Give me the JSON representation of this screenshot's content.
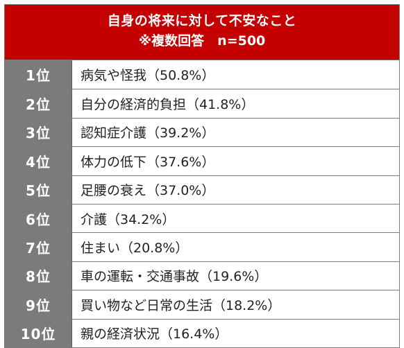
{
  "header": {
    "title": "自身の将来に対して不安なこと",
    "subtitle": "※複数回答　n=500"
  },
  "rows": [
    {
      "rank": "1位",
      "text": "病気や怪我（50.8%）"
    },
    {
      "rank": "2位",
      "text": "自分の経済的負担（41.8%）"
    },
    {
      "rank": "3位",
      "text": "認知症介護（39.2%）"
    },
    {
      "rank": "4位",
      "text": "体力の低下（37.6%）"
    },
    {
      "rank": "5位",
      "text": "足腰の衰え（37.0%）"
    },
    {
      "rank": "6位",
      "text": "介護（34.2%）"
    },
    {
      "rank": "7位",
      "text": "住まい（20.8%）"
    },
    {
      "rank": "8位",
      "text": "車の運転・交通事故（19.6%）"
    },
    {
      "rank": "9位",
      "text": "買い物など日常の生活（18.2%）"
    },
    {
      "rank": "10位",
      "text": "親の経済状況（16.4%）"
    }
  ],
  "colors": {
    "header_bg": "#c40000",
    "rank_bg": "#7b7b7b",
    "border": "#7a7a7a"
  }
}
